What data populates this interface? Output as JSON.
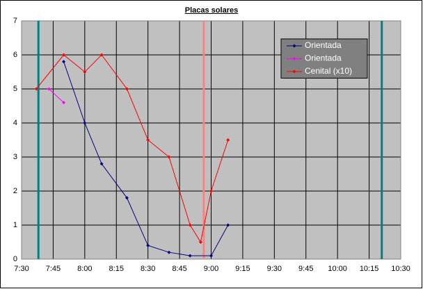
{
  "chart_data": {
    "type": "line",
    "title": "Placas solares",
    "xlim": [
      450,
      630
    ],
    "ylim": [
      0,
      7
    ],
    "xticks": [
      {
        "value": 450,
        "label": "7:30"
      },
      {
        "value": 465,
        "label": "7:45"
      },
      {
        "value": 480,
        "label": "8:00"
      },
      {
        "value": 495,
        "label": "8:15"
      },
      {
        "value": 510,
        "label": "8:30"
      },
      {
        "value": 525,
        "label": "8:45"
      },
      {
        "value": 540,
        "label": "9:00"
      },
      {
        "value": 555,
        "label": "9:15"
      },
      {
        "value": 570,
        "label": "9:30"
      },
      {
        "value": 585,
        "label": "9:45"
      },
      {
        "value": 600,
        "label": "10:00"
      },
      {
        "value": 615,
        "label": "10:15"
      },
      {
        "value": 630,
        "label": "10:30"
      }
    ],
    "yticks": [
      0,
      1,
      2,
      3,
      4,
      5,
      6,
      7
    ],
    "grid": true,
    "legend": "upper right",
    "series": [
      {
        "name": "Orientada",
        "color": "#000080",
        "x": [
          470,
          480,
          488,
          500,
          510,
          520,
          530,
          540,
          548
        ],
        "values": [
          5.8,
          4.0,
          2.8,
          1.8,
          0.4,
          0.2,
          0.1,
          0.1,
          1.0
        ]
      },
      {
        "name": "Orientada",
        "color": "#ff00ff",
        "x": [
          463,
          470
        ],
        "values": [
          5.0,
          4.6
        ]
      },
      {
        "name": "Cenital (x10)",
        "color": "#ff0000",
        "x": [
          457,
          470,
          480,
          488,
          500,
          510,
          520,
          530,
          535,
          540,
          548
        ],
        "values": [
          5.0,
          6.0,
          5.5,
          6.0,
          5.0,
          3.5,
          3.0,
          1.0,
          0.5,
          2.0,
          3.5
        ]
      }
    ],
    "vertical_lines": [
      {
        "x": 458,
        "color": "#008080"
      },
      {
        "x": 536.5,
        "color": "#ff8080"
      },
      {
        "x": 621,
        "color": "#008080"
      }
    ]
  }
}
